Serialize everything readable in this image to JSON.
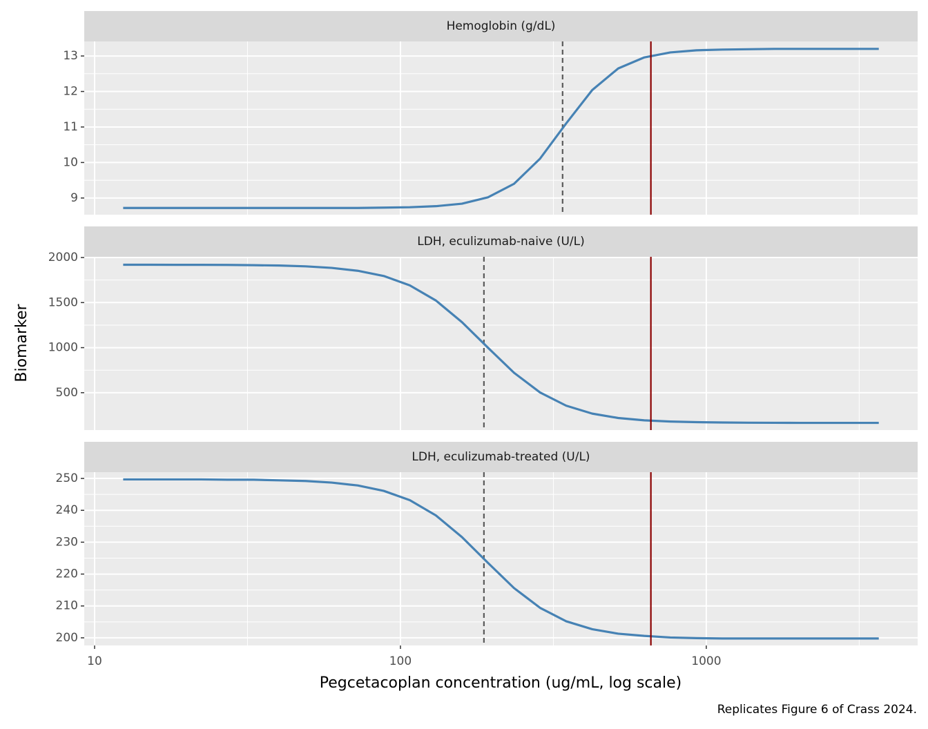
{
  "figure": {
    "y_label": "Biomarker",
    "x_label": "Pegcetacoplan concentration (ug/mL, log scale)",
    "caption": "Replicates Figure 6 of Crass 2024."
  },
  "chart_data": [
    {
      "type": "line",
      "title": "Hemoglobin (g/dL)",
      "log_x": true,
      "grid": true,
      "x": [
        12.4,
        15.1,
        18.4,
        22.3,
        27.2,
        33.1,
        40.2,
        49.0,
        59.6,
        72.5,
        88.2,
        107.3,
        130.6,
        158.9,
        193.3,
        235.2,
        286.2,
        348.2,
        423.6,
        515.4,
        627.1,
        763.0,
        928.4,
        1129.6,
        1374.4,
        1672.2,
        2034.6,
        2475.5,
        3011.9,
        3664.6
      ],
      "series": [
        {
          "color": "#4682b4",
          "values": [
            8.72,
            8.72,
            8.72,
            8.72,
            8.72,
            8.72,
            8.72,
            8.72,
            8.72,
            8.72,
            8.73,
            8.74,
            8.77,
            8.84,
            9.02,
            9.4,
            10.11,
            11.1,
            12.04,
            12.65,
            12.96,
            13.1,
            13.16,
            13.18,
            13.19,
            13.2,
            13.2,
            13.2,
            13.2,
            13.2
          ]
        }
      ],
      "xlim": [
        9.25,
        4910
      ],
      "xticks": [
        10,
        100,
        1000
      ],
      "ylim": [
        8.53,
        13.41
      ],
      "yticks": [
        9,
        10,
        11,
        12,
        13
      ],
      "vlines": [
        {
          "x": 659,
          "color": "#8b0000",
          "dashed": false
        },
        {
          "x": 339,
          "color": "#595959",
          "dashed": true
        }
      ]
    },
    {
      "type": "line",
      "title": "LDH, eculizumab-naive (U/L)",
      "log_x": true,
      "grid": true,
      "x": [
        12.4,
        15.1,
        18.4,
        22.3,
        27.2,
        33.1,
        40.2,
        49.0,
        59.6,
        72.5,
        88.2,
        107.3,
        130.6,
        158.9,
        193.3,
        235.2,
        286.2,
        348.2,
        423.6,
        515.4,
        627.1,
        763.0,
        928.4,
        1129.6,
        1374.4,
        1672.2,
        2034.6,
        2475.5,
        3011.9,
        3664.6
      ],
      "series": [
        {
          "color": "#4682b4",
          "values": [
            1920,
            1920,
            1919,
            1919,
            1918,
            1915,
            1911,
            1902,
            1885,
            1853,
            1795,
            1691,
            1523,
            1283,
            999,
            721,
            502,
            356,
            268,
            219,
            193,
            180,
            173,
            169,
            167,
            166,
            165,
            165,
            165,
            165
          ]
        }
      ],
      "xlim": [
        9.25,
        4910
      ],
      "xticks": [
        10,
        100,
        1000
      ],
      "ylim": [
        85,
        2008
      ],
      "yticks": [
        500,
        1000,
        1500,
        2000
      ],
      "vlines": [
        {
          "x": 659,
          "color": "#8b0000",
          "dashed": false
        },
        {
          "x": 187.5,
          "color": "#595959",
          "dashed": true
        }
      ]
    },
    {
      "type": "line",
      "title": "LDH, eculizumab-treated (U/L)",
      "log_x": true,
      "grid": true,
      "x": [
        12.4,
        15.1,
        18.4,
        22.3,
        27.2,
        33.1,
        40.2,
        49.0,
        59.6,
        72.5,
        88.2,
        107.3,
        130.6,
        158.9,
        193.3,
        235.2,
        286.2,
        348.2,
        423.6,
        515.4,
        627.1,
        763.0,
        928.4,
        1129.6,
        1374.4,
        1672.2,
        2034.6,
        2475.5,
        3011.9,
        3664.6
      ],
      "series": [
        {
          "color": "#4682b4",
          "values": [
            249.7,
            249.7,
            249.7,
            249.7,
            249.6,
            249.6,
            249.4,
            249.2,
            248.7,
            247.8,
            246.1,
            243.2,
            238.4,
            231.6,
            223.5,
            215.6,
            209.4,
            205.2,
            202.7,
            201.3,
            200.6,
            200.1,
            199.9,
            199.8,
            199.8,
            199.8,
            199.8,
            199.8,
            199.8,
            199.8
          ]
        }
      ],
      "xlim": [
        9.25,
        4910
      ],
      "xticks": [
        10,
        100,
        1000
      ],
      "ylim": [
        197.6,
        251.96
      ],
      "yticks": [
        200,
        210,
        220,
        230,
        240,
        250
      ],
      "vlines": [
        {
          "x": 659,
          "color": "#8b0000",
          "dashed": false
        },
        {
          "x": 187.5,
          "color": "#595959",
          "dashed": true
        }
      ]
    }
  ]
}
